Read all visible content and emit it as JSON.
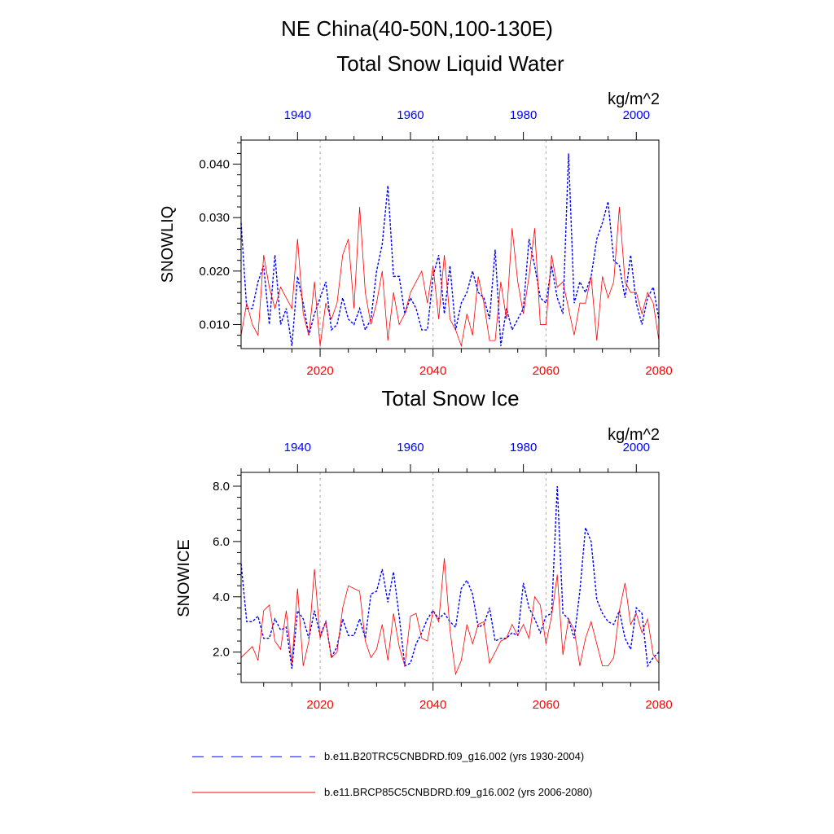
{
  "figure": {
    "title": "NE China(40-50N,100-130E)"
  },
  "legend": {
    "entries": [
      {
        "label": "b.e11.B20TRC5CNBDRD.f09_g16.002 (yrs 1930-2004)",
        "color": "#0000ff",
        "style": "dashed"
      },
      {
        "label": "b.e11.BRCP85C5CNBDRD.f09_g16.002 (yrs 2006-2080)",
        "color": "#ff0000",
        "style": "solid"
      }
    ]
  },
  "chart_data": [
    {
      "type": "line",
      "title": "Total Snow Liquid Water",
      "units": "kg/m^2",
      "ylabel": "SNOWLIQ",
      "ylim": [
        0.0055,
        0.0445
      ],
      "yticks": [
        0.01,
        0.02,
        0.03,
        0.04
      ],
      "ytick_labels": [
        "0.010",
        "0.020",
        "0.030",
        "0.040"
      ],
      "grid": "vertical dashed at major bottom ticks",
      "bottom_axis": {
        "range": [
          2006,
          2080
        ],
        "ticks": [
          2020,
          2040,
          2060,
          2080
        ],
        "color": "#ff0000"
      },
      "top_axis": {
        "range": [
          1930,
          2004
        ],
        "ticks": [
          1940,
          1960,
          1980,
          2000
        ],
        "color": "#0000ff"
      },
      "series": [
        {
          "name": "b.e11.B20TRC5CNBDRD.f09_g16.002 (yrs 1930-2004)",
          "axis": "top",
          "color": "#0000ff",
          "style": "dashed",
          "x": [
            1930,
            1931,
            1932,
            1933,
            1934,
            1935,
            1936,
            1937,
            1938,
            1939,
            1940,
            1941,
            1942,
            1943,
            1944,
            1945,
            1946,
            1947,
            1948,
            1949,
            1950,
            1951,
            1952,
            1953,
            1954,
            1955,
            1956,
            1957,
            1958,
            1959,
            1960,
            1961,
            1962,
            1963,
            1964,
            1965,
            1966,
            1967,
            1968,
            1969,
            1970,
            1971,
            1972,
            1973,
            1974,
            1975,
            1976,
            1977,
            1978,
            1979,
            1980,
            1981,
            1982,
            1983,
            1984,
            1985,
            1986,
            1987,
            1988,
            1989,
            1990,
            1991,
            1992,
            1993,
            1994,
            1995,
            1996,
            1997,
            1998,
            1999,
            2000,
            2001,
            2002,
            2003,
            2004
          ],
          "y": [
            0.029,
            0.013,
            0.013,
            0.018,
            0.021,
            0.01,
            0.023,
            0.01,
            0.013,
            0.006,
            0.019,
            0.014,
            0.008,
            0.012,
            0.015,
            0.018,
            0.009,
            0.01,
            0.015,
            0.011,
            0.01,
            0.013,
            0.009,
            0.011,
            0.02,
            0.025,
            0.036,
            0.019,
            0.019,
            0.012,
            0.015,
            0.013,
            0.009,
            0.009,
            0.019,
            0.023,
            0.012,
            0.021,
            0.009,
            0.014,
            0.016,
            0.02,
            0.016,
            0.015,
            0.011,
            0.024,
            0.006,
            0.013,
            0.009,
            0.011,
            0.013,
            0.026,
            0.021,
            0.015,
            0.014,
            0.021,
            0.015,
            0.012,
            0.042,
            0.014,
            0.018,
            0.016,
            0.019,
            0.026,
            0.029,
            0.033,
            0.022,
            0.021,
            0.015,
            0.023,
            0.014,
            0.01,
            0.015,
            0.017,
            0.011
          ]
        },
        {
          "name": "b.e11.BRCP85C5CNBDRD.f09_g16.002 (yrs 2006-2080)",
          "axis": "bottom",
          "color": "#ff0000",
          "style": "solid",
          "x": [
            2006,
            2007,
            2008,
            2009,
            2010,
            2011,
            2012,
            2013,
            2014,
            2015,
            2016,
            2017,
            2018,
            2019,
            2020,
            2021,
            2022,
            2023,
            2024,
            2025,
            2026,
            2027,
            2028,
            2029,
            2030,
            2031,
            2032,
            2033,
            2034,
            2035,
            2036,
            2037,
            2038,
            2039,
            2040,
            2041,
            2042,
            2043,
            2044,
            2045,
            2046,
            2047,
            2048,
            2049,
            2050,
            2051,
            2052,
            2053,
            2054,
            2055,
            2056,
            2057,
            2058,
            2059,
            2060,
            2061,
            2062,
            2063,
            2064,
            2065,
            2066,
            2067,
            2068,
            2069,
            2070,
            2071,
            2072,
            2073,
            2074,
            2075,
            2076,
            2077,
            2078,
            2079,
            2080
          ],
          "y": [
            0.008,
            0.014,
            0.01,
            0.008,
            0.023,
            0.017,
            0.013,
            0.017,
            0.015,
            0.013,
            0.026,
            0.012,
            0.008,
            0.018,
            0.006,
            0.014,
            0.011,
            0.014,
            0.023,
            0.026,
            0.013,
            0.032,
            0.016,
            0.01,
            0.014,
            0.02,
            0.007,
            0.016,
            0.01,
            0.012,
            0.016,
            0.018,
            0.02,
            0.014,
            0.021,
            0.011,
            0.023,
            0.011,
            0.009,
            0.006,
            0.012,
            0.008,
            0.019,
            0.014,
            0.007,
            0.007,
            0.018,
            0.011,
            0.028,
            0.018,
            0.012,
            0.019,
            0.028,
            0.01,
            0.01,
            0.023,
            0.017,
            0.018,
            0.013,
            0.008,
            0.014,
            0.014,
            0.019,
            0.007,
            0.019,
            0.015,
            0.018,
            0.032,
            0.018,
            0.016,
            0.016,
            0.012,
            0.016,
            0.014,
            0.007
          ]
        }
      ]
    },
    {
      "type": "line",
      "title": "Total Snow Ice",
      "units": "kg/m^2",
      "ylabel": "SNOWICE",
      "ylim": [
        0.9,
        8.5
      ],
      "yticks": [
        2.0,
        4.0,
        6.0,
        8.0
      ],
      "ytick_labels": [
        "2.0",
        "4.0",
        "6.0",
        "8.0"
      ],
      "grid": "vertical dashed at major bottom ticks",
      "bottom_axis": {
        "range": [
          2006,
          2080
        ],
        "ticks": [
          2020,
          2040,
          2060,
          2080
        ],
        "color": "#ff0000"
      },
      "top_axis": {
        "range": [
          1930,
          2004
        ],
        "ticks": [
          1940,
          1960,
          1980,
          2000
        ],
        "color": "#0000ff"
      },
      "series": [
        {
          "name": "b.e11.B20TRC5CNBDRD.f09_g16.002 (yrs 1930-2004)",
          "axis": "top",
          "color": "#0000ff",
          "style": "dashed",
          "x": [
            1930,
            1931,
            1932,
            1933,
            1934,
            1935,
            1936,
            1937,
            1938,
            1939,
            1940,
            1941,
            1942,
            1943,
            1944,
            1945,
            1946,
            1947,
            1948,
            1949,
            1950,
            1951,
            1952,
            1953,
            1954,
            1955,
            1956,
            1957,
            1958,
            1959,
            1960,
            1961,
            1962,
            1963,
            1964,
            1965,
            1966,
            1967,
            1968,
            1969,
            1970,
            1971,
            1972,
            1973,
            1974,
            1975,
            1976,
            1977,
            1978,
            1979,
            1980,
            1981,
            1982,
            1983,
            1984,
            1985,
            1986,
            1987,
            1988,
            1989,
            1990,
            1991,
            1992,
            1993,
            1994,
            1995,
            1996,
            1997,
            1998,
            1999,
            2000,
            2001,
            2002,
            2003,
            2004
          ],
          "y": [
            5.2,
            3.1,
            3.1,
            3.3,
            2.5,
            2.5,
            3.2,
            2.8,
            2.9,
            1.4,
            3.5,
            3.2,
            2.5,
            3.5,
            2.6,
            3.1,
            1.8,
            2.2,
            3.2,
            2.6,
            2.6,
            3.2,
            2.5,
            4.1,
            4.2,
            5.0,
            3.8,
            4.9,
            3.3,
            1.5,
            1.6,
            2.3,
            2.7,
            3.2,
            3.5,
            3.2,
            3.4,
            3.1,
            2.9,
            4.3,
            4.6,
            4.1,
            2.9,
            3.0,
            3.6,
            2.4,
            2.5,
            2.5,
            2.7,
            2.6,
            4.5,
            3.6,
            3.2,
            2.7,
            3.3,
            3.4,
            8.0,
            3.4,
            3.2,
            2.5,
            4.2,
            6.5,
            6.0,
            3.9,
            3.4,
            3.1,
            3.0,
            3.5,
            2.5,
            2.1,
            3.6,
            3.4,
            1.5,
            1.8,
            2.0
          ]
        },
        {
          "name": "b.e11.BRCP85C5CNBDRD.f09_g16.002 (yrs 2006-2080)",
          "axis": "bottom",
          "color": "#ff0000",
          "style": "solid",
          "x": [
            2006,
            2007,
            2008,
            2009,
            2010,
            2011,
            2012,
            2013,
            2014,
            2015,
            2016,
            2017,
            2018,
            2019,
            2020,
            2021,
            2022,
            2023,
            2024,
            2025,
            2026,
            2027,
            2028,
            2029,
            2030,
            2031,
            2032,
            2033,
            2034,
            2035,
            2036,
            2037,
            2038,
            2039,
            2040,
            2041,
            2042,
            2043,
            2044,
            2045,
            2046,
            2047,
            2048,
            2049,
            2050,
            2051,
            2052,
            2053,
            2054,
            2055,
            2056,
            2057,
            2058,
            2059,
            2060,
            2061,
            2062,
            2063,
            2064,
            2065,
            2066,
            2067,
            2068,
            2069,
            2070,
            2071,
            2072,
            2073,
            2074,
            2075,
            2076,
            2077,
            2078,
            2079,
            2080
          ],
          "y": [
            1.8,
            2.0,
            2.2,
            1.7,
            3.5,
            3.7,
            2.4,
            2.1,
            3.5,
            1.6,
            4.3,
            1.5,
            2.4,
            5.0,
            2.5,
            3.1,
            1.8,
            2.0,
            3.6,
            4.4,
            4.3,
            4.2,
            2.4,
            1.8,
            2.1,
            3.0,
            1.7,
            3.4,
            2.2,
            1.5,
            3.3,
            3.4,
            2.5,
            2.4,
            3.5,
            3.1,
            5.4,
            2.8,
            1.2,
            1.7,
            3.0,
            2.3,
            3.0,
            3.1,
            1.6,
            2.0,
            2.4,
            2.5,
            3.0,
            2.6,
            3.0,
            2.5,
            4.0,
            3.7,
            2.3,
            3.3,
            4.8,
            1.9,
            3.2,
            2.8,
            1.5,
            2.5,
            3.1,
            2.3,
            1.5,
            1.5,
            1.8,
            3.5,
            4.5,
            3.0,
            3.4,
            2.7,
            3.2,
            1.9,
            1.6
          ]
        }
      ]
    }
  ]
}
